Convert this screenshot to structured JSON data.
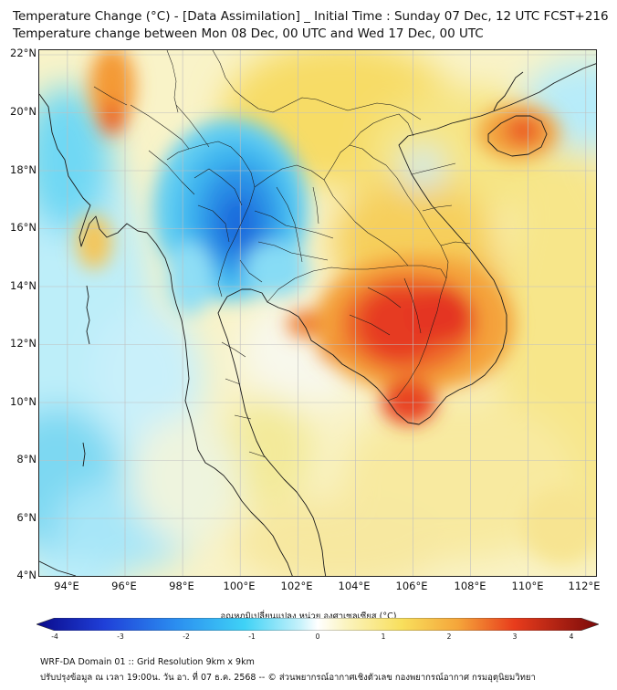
{
  "title": {
    "line1": "Temperature Change (°C) - [Data Assimilation] _ Initial Time : Sunday 07 Dec, 12 UTC FCST+216",
    "line2": "Temperature change between Mon 08 Dec, 00 UTC and Wed 17 Dec, 00 UTC"
  },
  "axes": {
    "lat_labels": [
      "22°N",
      "20°N",
      "18°N",
      "16°N",
      "14°N",
      "12°N",
      "10°N",
      "8°N",
      "6°N",
      "4°N"
    ],
    "lon_labels": [
      "94°E",
      "96°E",
      "98°E",
      "100°E",
      "102°E",
      "104°E",
      "106°E",
      "108°E",
      "110°E",
      "112°E"
    ],
    "lat_range": [
      4,
      22.2
    ],
    "lon_range": [
      93,
      112.4
    ]
  },
  "colorbar": {
    "title": "อุณหภูมิเปลี่ยนแปลง หน่วย องศาเซลเซียส (°C)",
    "ticks": [
      "-4",
      "-3",
      "-2",
      "-1",
      "0",
      "1",
      "2",
      "3",
      "4"
    ],
    "range": [
      -4,
      4
    ]
  },
  "footer": {
    "line1": "WRF-DA Domain 01 :: Grid Resolution 9km x 9km",
    "line2": "ปรับปรุงข้อมูล ณ เวลา 19:00น. วัน อา. ที่ 07 ธ.ค. 2568 -- © ส่วนพยากรณ์อากาศเชิงตัวเลข กองพยากรณ์อากาศ กรมอุตุนิยมวิทยา"
  },
  "colors": {
    "blue_deep": "#1e6fe0",
    "cyan": "#3ecff5",
    "light_cyan": "#b8eefb",
    "white": "#fbfbf4",
    "yellow": "#f7e36a",
    "orange": "#f6a23a",
    "red": "#e8281c"
  },
  "anomalies": [
    {
      "name": "myanmar-cold-core",
      "lon": 99.7,
      "lat": 16.4,
      "value": -2.6
    },
    {
      "name": "north-myanmar-cold",
      "lon": 99.0,
      "lat": 18.8,
      "value": -1.8
    },
    {
      "name": "cambodia-warm-core",
      "lon": 105.6,
      "lat": 12.9,
      "value": 3.1
    },
    {
      "name": "mekong-delta-warm",
      "lon": 105.5,
      "lat": 10.0,
      "value": 2.8
    },
    {
      "name": "hainan-warm",
      "lon": 110.0,
      "lat": 19.4,
      "value": 2.6
    },
    {
      "name": "northwest-warm",
      "lon": 95.8,
      "lat": 21.2,
      "value": 2.4
    },
    {
      "name": "west-ocean-cold",
      "lon": 94.0,
      "lat": 14.0,
      "value": -1.2
    },
    {
      "name": "southwest-ocean-cold",
      "lon": 95.0,
      "lat": 7.0,
      "value": -1.3
    }
  ]
}
